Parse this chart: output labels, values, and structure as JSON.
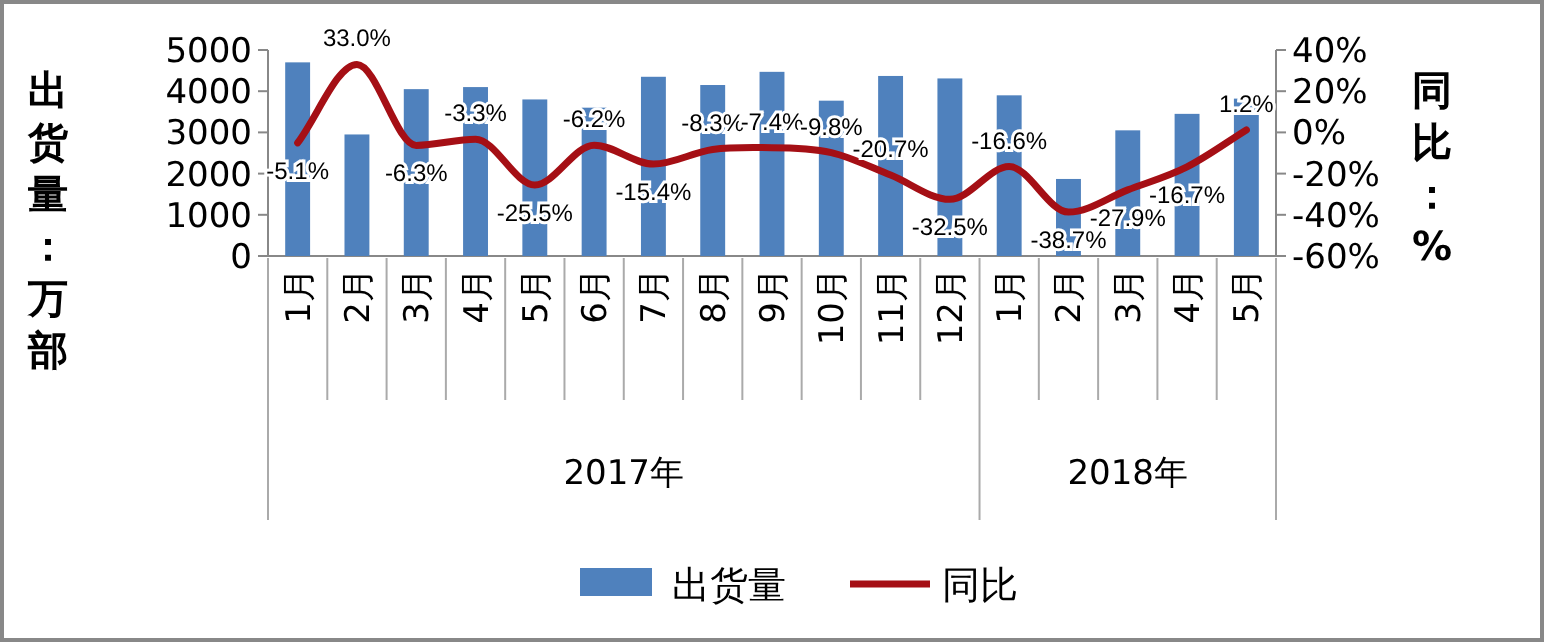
{
  "chart_data": {
    "type": "bar",
    "categories": [
      "1月",
      "2月",
      "3月",
      "4月",
      "5月",
      "6月",
      "7月",
      "8月",
      "9月",
      "10月",
      "11月",
      "12月",
      "1月",
      "2月",
      "3月",
      "4月",
      "5月"
    ],
    "series": [
      {
        "name": "出货量",
        "color": "#4f81bd",
        "values": [
          4700,
          2950,
          4050,
          4100,
          3800,
          3600,
          4350,
          4150,
          4470,
          3770,
          4370,
          4310,
          3900,
          1870,
          3050,
          3450,
          3820
        ]
      },
      {
        "name": "同比",
        "type": "line",
        "axis": "y2",
        "color": "#a50f15",
        "marker": "none",
        "values": [
          -5.1,
          33.0,
          -6.3,
          -3.3,
          -25.5,
          -6.2,
          -15.4,
          -8.3,
          -7.4,
          -9.8,
          -20.7,
          -32.5,
          -16.6,
          -38.7,
          -27.9,
          -16.7,
          1.2
        ],
        "value_labels": [
          "-5.1%",
          "33.0%",
          "-6.3%",
          "-3.3%",
          "-25.5%",
          "-6.2%",
          "-15.4%",
          "-8.3%",
          "-7.4%",
          "-9.8%",
          "-20.7%",
          "-32.5%",
          "-16.6%",
          "-38.7%",
          "-27.9%",
          "-16.7%",
          "1.2%"
        ]
      }
    ],
    "ylabel": "出货量：万部",
    "y2label": "同比：%",
    "ylim": [
      0,
      5000
    ],
    "yticks": [
      0,
      1000,
      2000,
      3000,
      4000,
      5000
    ],
    "y2lim": [
      -60,
      40
    ],
    "y2ticks": [
      {
        "value": -60,
        "label": "-60%"
      },
      {
        "value": -40,
        "label": "-40%"
      },
      {
        "value": -20,
        "label": "-20%"
      },
      {
        "value": 0,
        "label": "0%"
      },
      {
        "value": 20,
        "label": "20%"
      },
      {
        "value": 40,
        "label": "40%"
      }
    ],
    "annotations": [
      "2017年",
      "2018年"
    ],
    "grid": false,
    "legend": "bottom"
  }
}
